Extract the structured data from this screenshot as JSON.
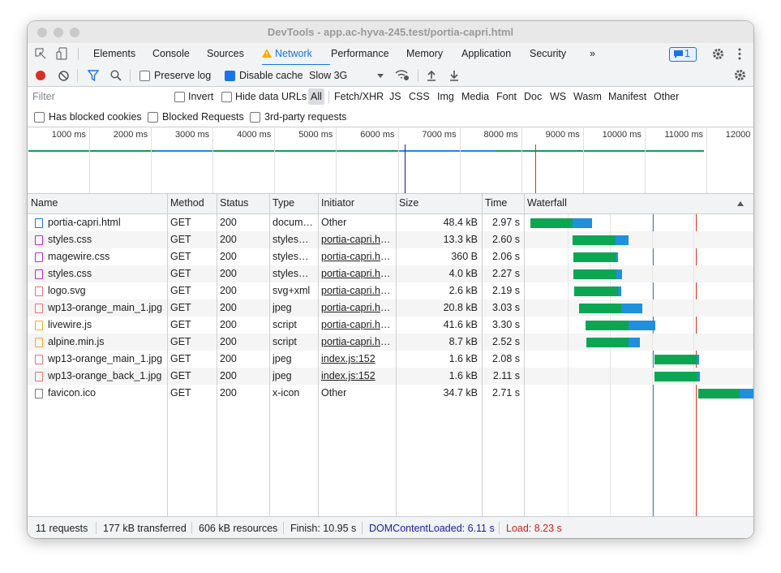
{
  "window": {
    "title": "DevTools - app.ac-hyva-245.test/portia-capri.html"
  },
  "tabs": {
    "items": [
      "Elements",
      "Console",
      "Sources",
      "Network",
      "Performance",
      "Memory",
      "Application",
      "Security",
      "»"
    ],
    "badge": "1"
  },
  "toolbar": {
    "preserve_log": "Preserve log",
    "disable_cache": "Disable cache",
    "throttling": "Slow 3G"
  },
  "filter": {
    "placeholder": "Filter",
    "invert": "Invert",
    "hide_data_urls": "Hide data URLs",
    "types": [
      "All",
      "Fetch/XHR",
      "JS",
      "CSS",
      "Img",
      "Media",
      "Font",
      "Doc",
      "WS",
      "Wasm",
      "Manifest",
      "Other"
    ]
  },
  "options": [
    "Has blocked cookies",
    "Blocked Requests",
    "3rd-party requests"
  ],
  "overview": {
    "ticks": [
      "1000 ms",
      "2000 ms",
      "3000 ms",
      "4000 ms",
      "5000 ms",
      "6000 ms",
      "7000 ms",
      "8000 ms",
      "9000 ms",
      "10000 ms",
      "11000 ms",
      "12000 ms"
    ]
  },
  "table": {
    "columns": [
      "Name",
      "Method",
      "Status",
      "Type",
      "Initiator",
      "Size",
      "Time",
      "Waterfall"
    ],
    "rows": [
      [
        "portia-capri.html",
        "GET",
        "200",
        "document",
        "Other",
        "48.4 kB",
        "2.97 s"
      ],
      [
        "styles.css",
        "GET",
        "200",
        "stylesheet",
        "portia-capri.html",
        "13.3 kB",
        "2.60 s"
      ],
      [
        "magewire.css",
        "GET",
        "200",
        "stylesheet",
        "portia-capri.html",
        "360 B",
        "2.06 s"
      ],
      [
        "styles.css",
        "GET",
        "200",
        "stylesheet",
        "portia-capri.html",
        "4.0 kB",
        "2.27 s"
      ],
      [
        "logo.svg",
        "GET",
        "200",
        "svg+xml",
        "portia-capri.html",
        "2.6 kB",
        "2.19 s"
      ],
      [
        "wp13-orange_main_1.jpg",
        "GET",
        "200",
        "jpeg",
        "portia-capri.html",
        "20.8 kB",
        "3.03 s"
      ],
      [
        "livewire.js",
        "GET",
        "200",
        "script",
        "portia-capri.html",
        "41.6 kB",
        "3.30 s"
      ],
      [
        "alpine.min.js",
        "GET",
        "200",
        "script",
        "portia-capri.html",
        "8.7 kB",
        "2.52 s"
      ],
      [
        "wp13-orange_main_1.jpg",
        "GET",
        "200",
        "jpeg",
        "index.js:152",
        "1.6 kB",
        "2.08 s"
      ],
      [
        "wp13-orange_back_1.jpg",
        "GET",
        "200",
        "jpeg",
        "index.js:152",
        "1.6 kB",
        "2.11 s"
      ],
      [
        "favicon.ico",
        "GET",
        "200",
        "x-icon",
        "Other",
        "34.7 kB",
        "2.71 s"
      ]
    ]
  },
  "status_bar": [
    "11 requests",
    "177 kB transferred",
    "606 kB resources",
    "Finish: 10.95 s",
    "DOMContentLoaded: 6.11 s",
    "Load: 8.23 s"
  ]
}
